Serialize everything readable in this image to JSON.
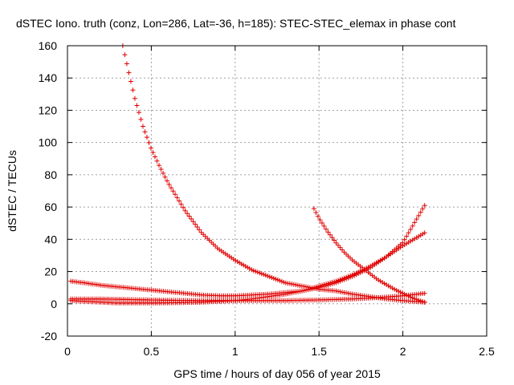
{
  "chart_data": {
    "type": "scatter",
    "title": "dSTEC Iono. truth (conz, Lon=286, Lat=-36, h=185): STEC-STEC_elemax in phase cont",
    "xlabel": "GPS time / hours of day 056 of year 2015",
    "ylabel": "dSTEC  / TECUs",
    "xlim": [
      0,
      2.5
    ],
    "ylim": [
      -20,
      160
    ],
    "xticks": [
      0,
      0.5,
      1,
      1.5,
      2,
      2.5
    ],
    "xtick_labels": [
      "0",
      "0.5",
      "1",
      "1.5",
      "2",
      "2.5"
    ],
    "yticks": [
      -20,
      0,
      20,
      40,
      60,
      80,
      100,
      120,
      140,
      160
    ],
    "ytick_labels": [
      "-20",
      "0",
      "20",
      "40",
      "60",
      "80",
      "100",
      "120",
      "140",
      "160"
    ],
    "grid": true,
    "marker": "plus",
    "color": "#e00000",
    "series": [
      {
        "x": [
          0.33,
          0.36,
          0.4,
          0.45,
          0.5,
          0.55,
          0.6,
          0.7,
          0.8,
          0.9,
          1.0,
          1.1,
          1.2,
          1.3,
          1.4,
          1.5,
          1.6,
          1.7,
          1.8,
          1.9,
          2.0,
          2.13
        ],
        "y": [
          160,
          146,
          128,
          110,
          96,
          85,
          75,
          58,
          44,
          34,
          27,
          21,
          17,
          13,
          11,
          9,
          8,
          6,
          4.5,
          3,
          2,
          1
        ]
      },
      {
        "x": [
          0.02,
          0.1,
          0.2,
          0.3,
          0.4,
          0.5,
          0.6,
          0.7,
          0.8,
          0.9,
          1.0,
          1.1,
          1.2,
          1.3,
          1.4,
          1.5,
          1.6,
          1.7,
          1.8,
          1.9,
          2.0,
          2.13
        ],
        "y": [
          14,
          13,
          11.5,
          10.5,
          9.5,
          8.5,
          7.5,
          6.5,
          5.5,
          5,
          5,
          5.5,
          6,
          7,
          8,
          10,
          13,
          17,
          22,
          29,
          38,
          61
        ]
      },
      {
        "x": [
          0.02,
          0.1,
          0.2,
          0.3,
          0.4,
          0.5,
          0.6,
          0.7,
          0.8,
          0.9,
          1.0,
          1.1,
          1.2,
          1.3,
          1.4,
          1.5,
          1.6,
          1.7,
          1.8,
          1.9,
          2.0,
          2.13
        ],
        "y": [
          2,
          1.5,
          1,
          0.5,
          0.5,
          0.5,
          0.6,
          0.8,
          1,
          1.5,
          2,
          3,
          4.5,
          6,
          8,
          11,
          14,
          18,
          23,
          29,
          36,
          44
        ]
      },
      {
        "x": [
          1.47,
          1.5,
          1.55,
          1.6,
          1.65,
          1.7,
          1.75,
          1.8,
          1.85,
          1.9,
          1.95,
          2.0,
          2.05,
          2.1,
          2.13
        ],
        "y": [
          59,
          53,
          45,
          38,
          32,
          27,
          23,
          19,
          15,
          12,
          9,
          6.5,
          4,
          2,
          1
        ]
      },
      {
        "x": [
          0.02,
          0.1,
          0.2,
          0.3,
          0.4,
          0.5,
          0.6,
          0.7,
          0.8,
          0.9,
          1.0,
          1.1,
          1.2,
          1.3,
          1.4,
          1.5,
          1.6,
          1.7,
          1.8,
          1.9,
          2.0,
          2.13
        ],
        "y": [
          3,
          3,
          3,
          2.8,
          2.6,
          2.4,
          2.2,
          2.1,
          2,
          2,
          2,
          2,
          2,
          2,
          2.2,
          2.4,
          2.7,
          3,
          3.5,
          4.2,
          5,
          6.5
        ]
      }
    ]
  }
}
